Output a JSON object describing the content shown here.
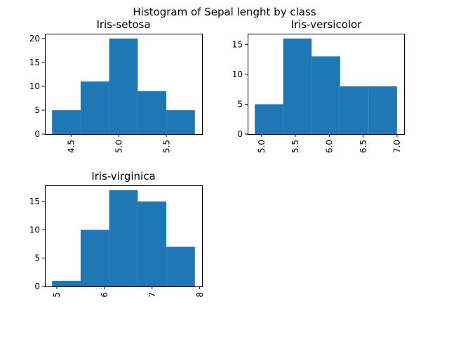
{
  "figure": {
    "suptitle": "Histogram of Sepal lenght by class"
  },
  "chart_data": [
    {
      "type": "bar",
      "title": "Iris-setosa",
      "bins": [
        {
          "x0": 4.3,
          "x1": 4.6,
          "count": 5
        },
        {
          "x0": 4.6,
          "x1": 4.9,
          "count": 11
        },
        {
          "x0": 4.9,
          "x1": 5.2,
          "count": 20
        },
        {
          "x0": 5.2,
          "x1": 5.5,
          "count": 9
        },
        {
          "x0": 5.5,
          "x1": 5.8,
          "count": 5
        }
      ],
      "xlim": [
        4.225,
        5.875
      ],
      "ylim": [
        0,
        21
      ],
      "xticks": [
        4.5,
        5.0,
        5.5
      ],
      "xtick_labels": [
        "4.5",
        "5.0",
        "5.5"
      ],
      "yticks": [
        0,
        5,
        10,
        15,
        20
      ],
      "ytick_labels": [
        "0",
        "5",
        "10",
        "15",
        "20"
      ],
      "color": "#1f77b4",
      "grid": false
    },
    {
      "type": "bar",
      "title": "Iris-versicolor",
      "bins": [
        {
          "x0": 4.9,
          "x1": 5.32,
          "count": 5
        },
        {
          "x0": 5.32,
          "x1": 5.74,
          "count": 16
        },
        {
          "x0": 5.74,
          "x1": 6.16,
          "count": 13
        },
        {
          "x0": 6.16,
          "x1": 6.58,
          "count": 8
        },
        {
          "x0": 6.58,
          "x1": 7.0,
          "count": 8
        }
      ],
      "xlim": [
        4.795,
        7.105
      ],
      "ylim": [
        0,
        16.8
      ],
      "xticks": [
        5.0,
        5.5,
        6.0,
        6.5,
        7.0
      ],
      "xtick_labels": [
        "5.0",
        "5.5",
        "6.0",
        "6.5",
        "7.0"
      ],
      "yticks": [
        0,
        5,
        10,
        15
      ],
      "ytick_labels": [
        "0",
        "5",
        "10",
        "15"
      ],
      "color": "#1f77b4",
      "grid": false
    },
    {
      "type": "bar",
      "title": "Iris-virginica",
      "bins": [
        {
          "x0": 4.9,
          "x1": 5.5,
          "count": 1
        },
        {
          "x0": 5.5,
          "x1": 6.1,
          "count": 10
        },
        {
          "x0": 6.1,
          "x1": 6.7,
          "count": 17
        },
        {
          "x0": 6.7,
          "x1": 7.3,
          "count": 15
        },
        {
          "x0": 7.3,
          "x1": 7.9,
          "count": 7
        }
      ],
      "xlim": [
        4.75,
        8.05
      ],
      "ylim": [
        0,
        17.85
      ],
      "xticks": [
        5,
        6,
        7,
        8
      ],
      "xtick_labels": [
        "5",
        "6",
        "7",
        "8"
      ],
      "yticks": [
        0,
        5,
        10,
        15
      ],
      "ytick_labels": [
        "0",
        "5",
        "10",
        "15"
      ],
      "color": "#1f77b4",
      "grid": false
    }
  ]
}
